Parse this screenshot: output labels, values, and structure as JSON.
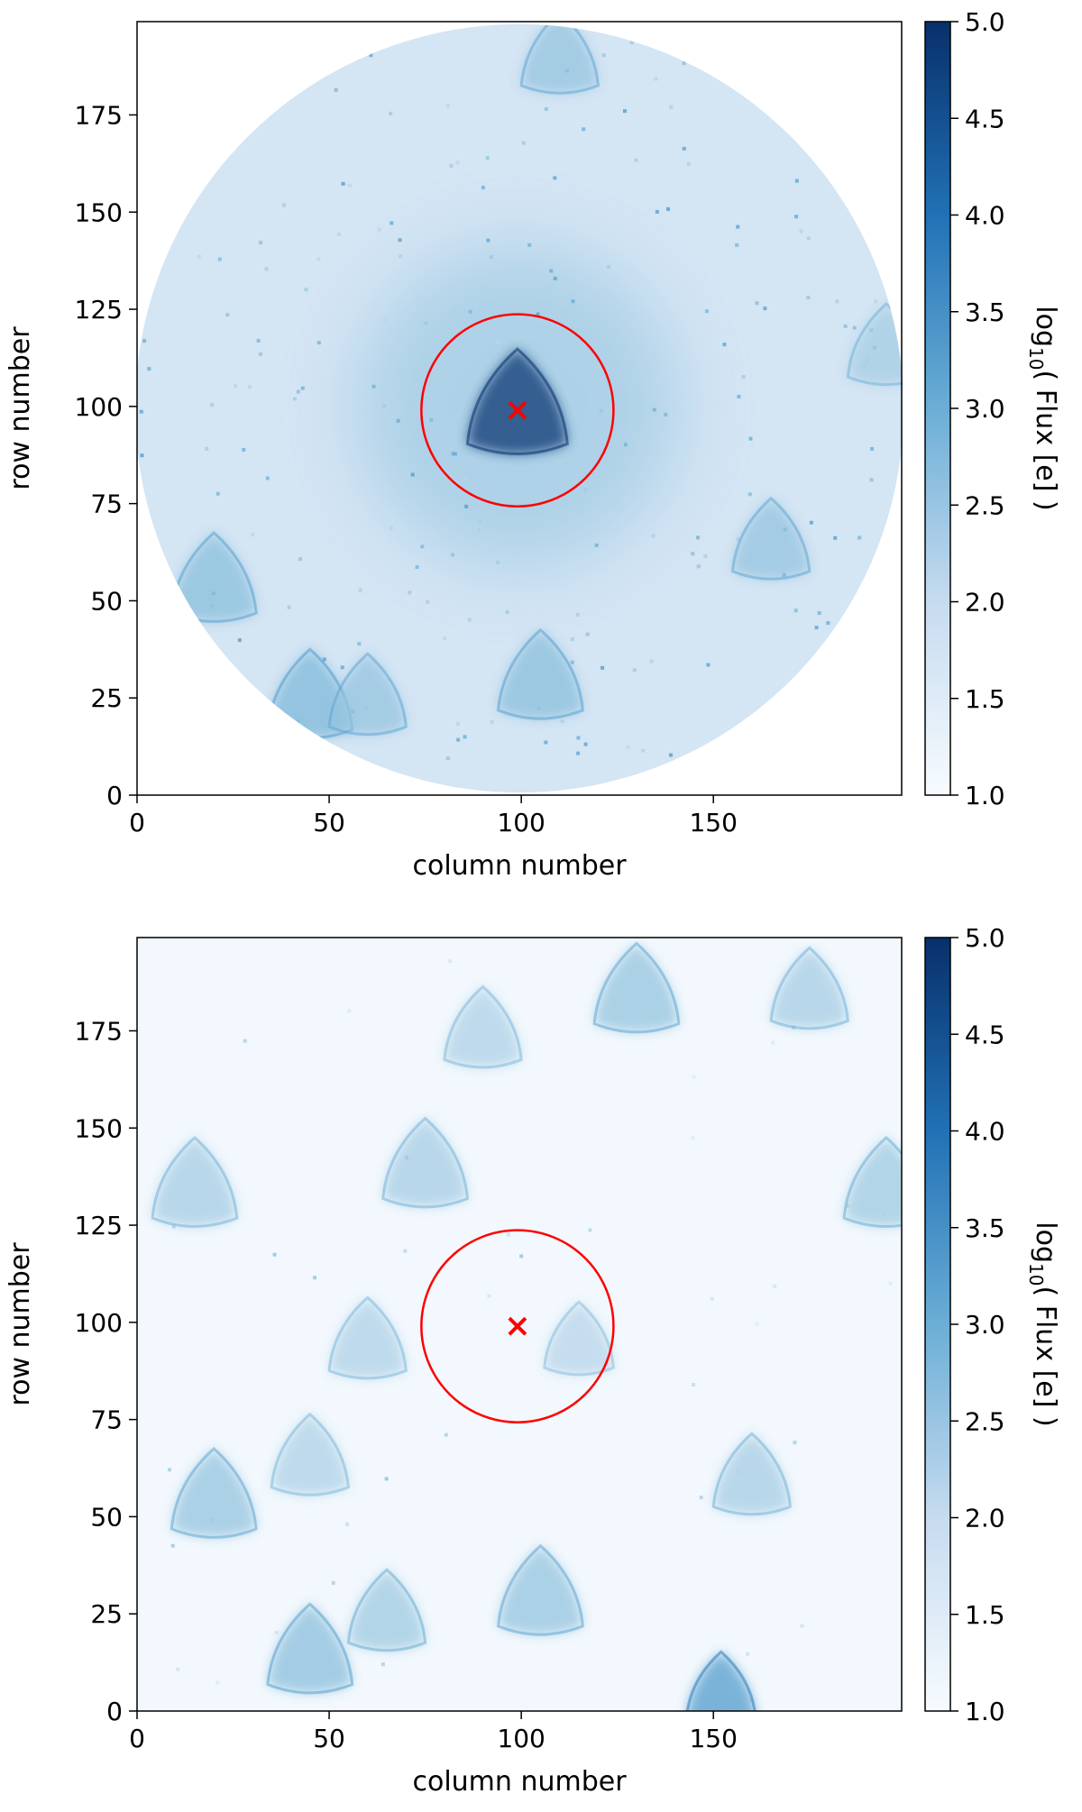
{
  "chart_data": [
    {
      "type": "heatmap",
      "panel": "top",
      "xlabel": "column number",
      "ylabel": "row number",
      "xlim": [
        0,
        199
      ],
      "ylim": [
        0,
        199
      ],
      "x_ticks": [
        0,
        50,
        100,
        150
      ],
      "y_ticks": [
        0,
        25,
        50,
        75,
        100,
        125,
        150,
        175
      ],
      "aperture": "circular",
      "aperture_radius": 100,
      "marker": {
        "symbol": "x",
        "x": 99,
        "y": 99,
        "color": "#ff0000"
      },
      "circle": {
        "center_x": 99,
        "center_y": 99,
        "radius": 25,
        "color": "#ff0000"
      },
      "colorbar": {
        "label_prefix": "log",
        "label_sub": "10",
        "label_rest": "( Flux [e] )",
        "min": 1.0,
        "max": 5.0,
        "ticks": [
          "1.0",
          "1.5",
          "2.0",
          "2.5",
          "3.0",
          "3.5",
          "4.0",
          "4.5",
          "5.0"
        ]
      },
      "background_log_flux": 1.7,
      "sources": [
        {
          "x": 99,
          "y": 100,
          "log_flux": 4.9,
          "size": 13
        },
        {
          "x": 110,
          "y": 190,
          "log_flux": 2.6,
          "size": 10
        },
        {
          "x": 20,
          "y": 55,
          "log_flux": 2.7,
          "size": 11
        },
        {
          "x": 45,
          "y": 25,
          "log_flux": 2.8,
          "size": 11
        },
        {
          "x": 60,
          "y": 25,
          "log_flux": 2.6,
          "size": 10
        },
        {
          "x": 105,
          "y": 30,
          "log_flux": 2.7,
          "size": 11
        },
        {
          "x": 165,
          "y": 65,
          "log_flux": 2.6,
          "size": 10
        },
        {
          "x": 195,
          "y": 115,
          "log_flux": 2.4,
          "size": 10
        }
      ]
    },
    {
      "type": "heatmap",
      "panel": "bottom",
      "xlabel": "column number",
      "ylabel": "row number",
      "xlim": [
        0,
        199
      ],
      "ylim": [
        0,
        199
      ],
      "x_ticks": [
        0,
        50,
        100,
        150
      ],
      "y_ticks": [
        0,
        25,
        50,
        75,
        100,
        125,
        150,
        175
      ],
      "marker": {
        "symbol": "x",
        "x": 99,
        "y": 99,
        "color": "#ff0000"
      },
      "circle": {
        "center_x": 99,
        "center_y": 99,
        "radius": 25,
        "color": "#ff0000"
      },
      "colorbar": {
        "label_prefix": "log",
        "label_sub": "10",
        "label_rest": "( Flux [e] )",
        "min": 1.0,
        "max": 5.0,
        "ticks": [
          "1.0",
          "1.5",
          "2.0",
          "2.5",
          "3.0",
          "3.5",
          "4.0",
          "4.5",
          "5.0"
        ]
      },
      "background_log_flux": 1.1,
      "sources": [
        {
          "x": 130,
          "y": 185,
          "log_flux": 2.6,
          "size": 11
        },
        {
          "x": 175,
          "y": 185,
          "log_flux": 2.4,
          "size": 10
        },
        {
          "x": 90,
          "y": 175,
          "log_flux": 2.3,
          "size": 10
        },
        {
          "x": 15,
          "y": 135,
          "log_flux": 2.4,
          "size": 11
        },
        {
          "x": 75,
          "y": 140,
          "log_flux": 2.4,
          "size": 11
        },
        {
          "x": 195,
          "y": 135,
          "log_flux": 2.5,
          "size": 11
        },
        {
          "x": 115,
          "y": 95,
          "log_flux": 2.2,
          "size": 9
        },
        {
          "x": 60,
          "y": 95,
          "log_flux": 2.3,
          "size": 10
        },
        {
          "x": 20,
          "y": 55,
          "log_flux": 2.6,
          "size": 11
        },
        {
          "x": 45,
          "y": 65,
          "log_flux": 2.3,
          "size": 10
        },
        {
          "x": 160,
          "y": 60,
          "log_flux": 2.4,
          "size": 10
        },
        {
          "x": 105,
          "y": 30,
          "log_flux": 2.6,
          "size": 11
        },
        {
          "x": 45,
          "y": 15,
          "log_flux": 2.7,
          "size": 11
        },
        {
          "x": 65,
          "y": 25,
          "log_flux": 2.5,
          "size": 10
        },
        {
          "x": 152,
          "y": 5,
          "log_flux": 3.3,
          "size": 9
        }
      ]
    }
  ]
}
